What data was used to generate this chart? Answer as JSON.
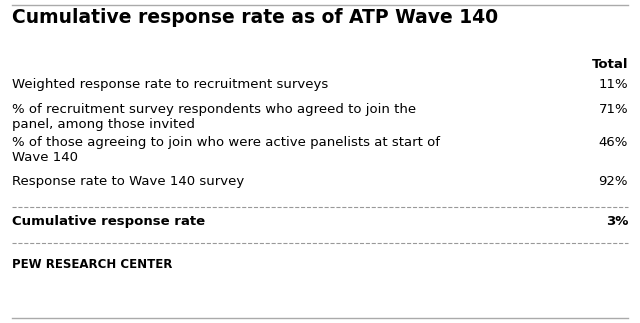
{
  "title": "Cumulative response rate as of ATP Wave 140",
  "col_header": "Total",
  "rows": [
    {
      "label": "Weighted response rate to recruitment surveys",
      "value": "11%",
      "bold": false
    },
    {
      "label": "% of recruitment survey respondents who agreed to join the\npanel, among those invited",
      "value": "71%",
      "bold": false
    },
    {
      "label": "% of those agreeing to join who were active panelists at start of\nWave 140",
      "value": "46%",
      "bold": false
    },
    {
      "label": "Response rate to Wave 140 survey",
      "value": "92%",
      "bold": false
    },
    {
      "label": "Cumulative response rate",
      "value": "3%",
      "bold": true
    }
  ],
  "footer": "PEW RESEARCH CENTER",
  "bg_color": "#FFFFFF",
  "title_color": "#000000",
  "text_color": "#000000",
  "line_color": "#999999",
  "title_fontsize": 13.5,
  "header_fontsize": 9.5,
  "row_fontsize": 9.5,
  "footer_fontsize": 8.5
}
